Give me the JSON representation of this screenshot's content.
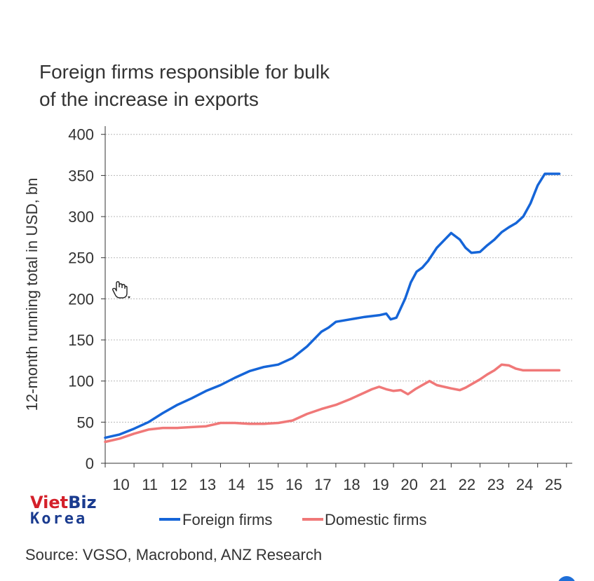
{
  "colors": {
    "foreign": "#1565d8",
    "domestic": "#f07878",
    "grid": "#b8b8b8",
    "axis": "#333333",
    "watermark_red": "#d4202a",
    "watermark_blue": "#1a3b8f",
    "corner_dot": "#1f6fd8"
  },
  "watermark": {
    "line1_viet": "Viet",
    "line1_biz": "Biz",
    "line2": "Korea"
  },
  "chart_data": {
    "type": "line",
    "title": [
      "Foreign firms responsible for bulk",
      "of the increase in exports"
    ],
    "ylabel": "12-month running total in USD, bn",
    "xlabel": "",
    "ylim": [
      0,
      410
    ],
    "yticks": [
      0,
      50,
      100,
      150,
      200,
      250,
      300,
      350,
      400
    ],
    "xlim": [
      2010.0,
      2026.2
    ],
    "xtick_positions": [
      2010.5,
      2011.5,
      2012.5,
      2013.5,
      2014.5,
      2015.5,
      2016.5,
      2017.5,
      2018.5,
      2019.5,
      2020.5,
      2021.5,
      2022.5,
      2023.5,
      2024.5,
      2025.5
    ],
    "xtick_labels": [
      "10",
      "11",
      "12",
      "13",
      "14",
      "15",
      "16",
      "17",
      "18",
      "19",
      "20",
      "21",
      "22",
      "23",
      "24",
      "25"
    ],
    "grid": true,
    "legend_position": "bottom",
    "series": [
      {
        "name": "Foreign firms",
        "key": "foreign",
        "x": [
          2010.0,
          2010.5,
          2011.0,
          2011.5,
          2012.0,
          2012.5,
          2013.0,
          2013.5,
          2014.0,
          2014.5,
          2015.0,
          2015.5,
          2016.0,
          2016.5,
          2017.0,
          2017.5,
          2017.75,
          2018.0,
          2018.5,
          2019.0,
          2019.5,
          2019.75,
          2019.9,
          2020.1,
          2020.4,
          2020.6,
          2020.8,
          2021.0,
          2021.2,
          2021.5,
          2022.0,
          2022.3,
          2022.5,
          2022.7,
          2023.0,
          2023.25,
          2023.5,
          2023.75,
          2024.0,
          2024.25,
          2024.5,
          2024.75,
          2025.0,
          2025.25,
          2025.5,
          2025.75
        ],
        "values": [
          31,
          35,
          42,
          50,
          61,
          71,
          79,
          88,
          95,
          104,
          112,
          117,
          120,
          128,
          142,
          160,
          165,
          172,
          175,
          178,
          180,
          182,
          175,
          177,
          200,
          220,
          233,
          238,
          246,
          262,
          280,
          272,
          262,
          256,
          257,
          265,
          272,
          281,
          287,
          292,
          300,
          316,
          338,
          352,
          352,
          352
        ]
      },
      {
        "name": "Domestic firms",
        "key": "domestic",
        "x": [
          2010.0,
          2010.5,
          2011.0,
          2011.5,
          2012.0,
          2012.5,
          2013.0,
          2013.5,
          2014.0,
          2014.5,
          2015.0,
          2015.5,
          2016.0,
          2016.5,
          2017.0,
          2017.5,
          2018.0,
          2018.5,
          2019.0,
          2019.25,
          2019.5,
          2019.75,
          2020.0,
          2020.25,
          2020.5,
          2020.75,
          2021.0,
          2021.25,
          2021.5,
          2022.0,
          2022.3,
          2022.5,
          2022.75,
          2023.0,
          2023.25,
          2023.5,
          2023.75,
          2024.0,
          2024.25,
          2024.5,
          2024.75,
          2025.0,
          2025.25,
          2025.5,
          2025.75
        ],
        "values": [
          26,
          30,
          36,
          41,
          43,
          43,
          44,
          45,
          49,
          49,
          48,
          48,
          49,
          52,
          60,
          66,
          71,
          78,
          86,
          90,
          93,
          90,
          88,
          89,
          84,
          90,
          95,
          100,
          95,
          91,
          89,
          92,
          97,
          102,
          108,
          113,
          120,
          119,
          115,
          113,
          113,
          113,
          113,
          113,
          113
        ]
      }
    ],
    "source": "Source: VGSO, Macrobond, ANZ Research"
  }
}
